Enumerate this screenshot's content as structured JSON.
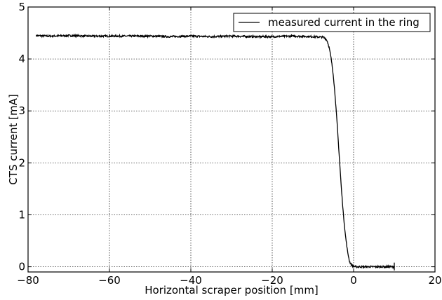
{
  "chart_data": {
    "type": "line",
    "xlabel": "Horizontal scraper position [mm]",
    "ylabel": "CTS current [mA]",
    "xlim": [
      -80,
      20
    ],
    "ylim": [
      -0.1,
      5
    ],
    "xticks": [
      -80,
      -60,
      -40,
      -20,
      0,
      20
    ],
    "yticks": [
      0,
      1,
      2,
      3,
      4,
      5
    ],
    "xtick_labels": [
      "−80",
      "−60",
      "−40",
      "−20",
      "0",
      "20"
    ],
    "ytick_labels": [
      "0",
      "1",
      "2",
      "3",
      "4",
      "5"
    ],
    "grid": true,
    "legend_position": "top-right",
    "series": [
      {
        "name": "measured current in the ring",
        "color": "#000000",
        "x": [
          -78,
          -75,
          -70,
          -65,
          -60,
          -55,
          -50,
          -45,
          -40,
          -35,
          -30,
          -25,
          -20,
          -15,
          -10,
          -8,
          -7.5,
          -7,
          -6.5,
          -6,
          -5.5,
          -5,
          -4.5,
          -4,
          -3.5,
          -3,
          -2.5,
          -2,
          -1.5,
          -1,
          -0.5,
          0,
          0.5,
          1,
          2,
          4,
          6,
          8,
          10
        ],
        "y": [
          4.45,
          4.44,
          4.45,
          4.44,
          4.44,
          4.44,
          4.44,
          4.43,
          4.44,
          4.43,
          4.44,
          4.43,
          4.43,
          4.44,
          4.43,
          4.42,
          4.42,
          4.4,
          4.35,
          4.22,
          4.0,
          3.7,
          3.25,
          2.7,
          2.1,
          1.5,
          1.0,
          0.6,
          0.3,
          0.1,
          0.03,
          0.01,
          0.0,
          0.0,
          0.0,
          0.0,
          0.0,
          0.0,
          0.0
        ]
      }
    ]
  }
}
